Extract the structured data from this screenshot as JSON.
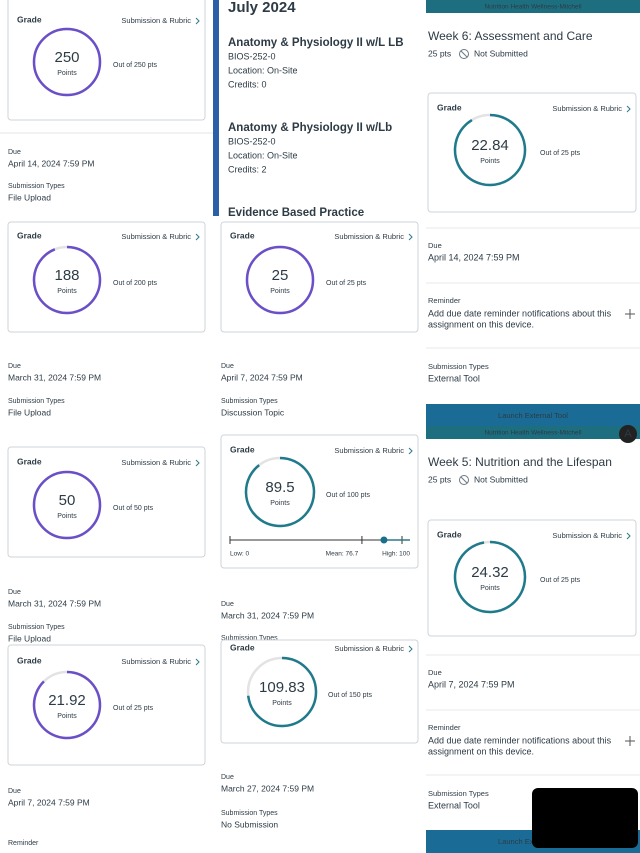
{
  "grade_cards": [
    {
      "grade_label": "Grade",
      "link": "Submission & Rubric",
      "score": 250,
      "unit": "Points",
      "total": {
        "value": 250,
        "label": "Out of 250 pts"
      },
      "color": "#6a4fc8"
    },
    {
      "grade_label": "Grade",
      "link": "Submission & Rubric",
      "score": 188,
      "unit": "Points",
      "total": {
        "value": 200,
        "label": "Out of 200 pts"
      },
      "color": "#6a4fc8"
    },
    {
      "grade_label": "Grade",
      "link": "Submission & Rubric",
      "score": 50,
      "unit": "Points",
      "total": {
        "value": 50,
        "label": "Out of 50 pts"
      },
      "color": "#6a4fc8"
    },
    {
      "grade_label": "Grade",
      "link": "Submission & Rubric",
      "score": 21.92,
      "unit": "Points",
      "total": {
        "value": 25,
        "label": "Out of 25 pts"
      },
      "color": "#6a4fc8"
    },
    {
      "grade_label": "Grade",
      "link": "Submission & Rubric",
      "score": 25,
      "unit": "Points",
      "total": {
        "value": 25,
        "label": "Out of 25 pts"
      },
      "color": "#6a4fc8"
    },
    {
      "grade_label": "Grade",
      "link": "Submission & Rubric",
      "score": 89.5,
      "unit": "Points",
      "total": {
        "value": 100,
        "label": "Out of 100 pts"
      },
      "color": "#1f7a8c",
      "stats": {
        "low": {
          "value": 0,
          "label": "Low: 0"
        },
        "mean": {
          "value": 76.7,
          "label": "Mean: 76.7"
        },
        "high": {
          "value": 100,
          "label": "High: 100"
        }
      }
    },
    {
      "grade_label": "Grade",
      "link": "Submission & Rubric",
      "score": 109.83,
      "unit": "Points",
      "total": {
        "value": 150,
        "label": "Out of 150 pts"
      },
      "color": "#1f7a8c"
    },
    {
      "grade_label": "Grade",
      "link": "Submission & Rubric",
      "score": 22.84,
      "unit": "Points",
      "total": {
        "value": 25,
        "label": "Out of 25 pts"
      },
      "color": "#1f7a8c"
    },
    {
      "grade_label": "Grade",
      "link": "Submission & Rubric",
      "score": 24.32,
      "unit": "Points",
      "total": {
        "value": 25,
        "label": "Out of 25 pts"
      },
      "color": "#1f7a8c"
    }
  ],
  "details": [
    {
      "label": "Due",
      "text": "April 14, 2024 7:59 PM"
    },
    {
      "label": "Submission Types",
      "text": "File Upload"
    },
    {
      "label": "Due",
      "text": "March 31, 2024 7:59 PM"
    },
    {
      "label": "Submission Types",
      "text": "File Upload"
    },
    {
      "label": "Due",
      "text": "March 31, 2024 7:59 PM"
    },
    {
      "label": "Submission Types",
      "text": "File Upload"
    },
    {
      "label": "Due",
      "text": "April 7, 2024 7:59 PM"
    },
    {
      "label": "Reminder"
    },
    {
      "label": "Due",
      "text": "April 7, 2024 7:59 PM"
    },
    {
      "label": "Submission Types",
      "text": "Discussion Topic"
    },
    {
      "label": "Due",
      "text": "March 31, 2024 7:59 PM"
    },
    {
      "label": "Submission Types"
    },
    {
      "label": "Due",
      "text": "March 27, 2024 7:59 PM"
    },
    {
      "label": "Submission Types",
      "text": "No Submission"
    },
    {
      "label": "Due",
      "text": "April 14, 2024 7:59 PM"
    },
    {
      "label": "Reminder",
      "text": [
        "Add due date reminder notifications about this",
        "assignment on this device."
      ]
    },
    {
      "label": "Submission Types",
      "text": "External Tool"
    },
    {
      "label": "Due",
      "text": "April 7, 2024 7:59 PM"
    },
    {
      "label": "Reminder",
      "text": [
        "Add due date reminder notifications about this",
        "assignment on this device."
      ]
    },
    {
      "label": "Submission Types",
      "text": "External Tool"
    }
  ],
  "schedule": {
    "month": "July 2024",
    "courses": [
      {
        "name": "Anatomy & Physiology II w/L LB",
        "code": "BIOS-252-0",
        "location": "Location: On-Site",
        "credits": "Credits: 0"
      },
      {
        "name": "Anatomy & Physiology II w/Lb",
        "code": "BIOS-252-0",
        "location": "Location: On-Site",
        "credits": "Credits: 2"
      },
      {
        "name": "Evidence Based Practice"
      }
    ]
  },
  "assignments": [
    {
      "course": "Nutrition Health Wellness-Mitchell",
      "title": "Week 6: Assessment and Care",
      "points": "25 pts",
      "status": "Not Submitted",
      "button": "Launch External Tool"
    },
    {
      "course": "Nutrition Health Wellness-Mitchell",
      "title": "Week 5: Nutrition and the Lifespan",
      "points": "25 pts",
      "status": "Not Submitted",
      "button": "Launch External Tool",
      "avatar": "A"
    }
  ]
}
